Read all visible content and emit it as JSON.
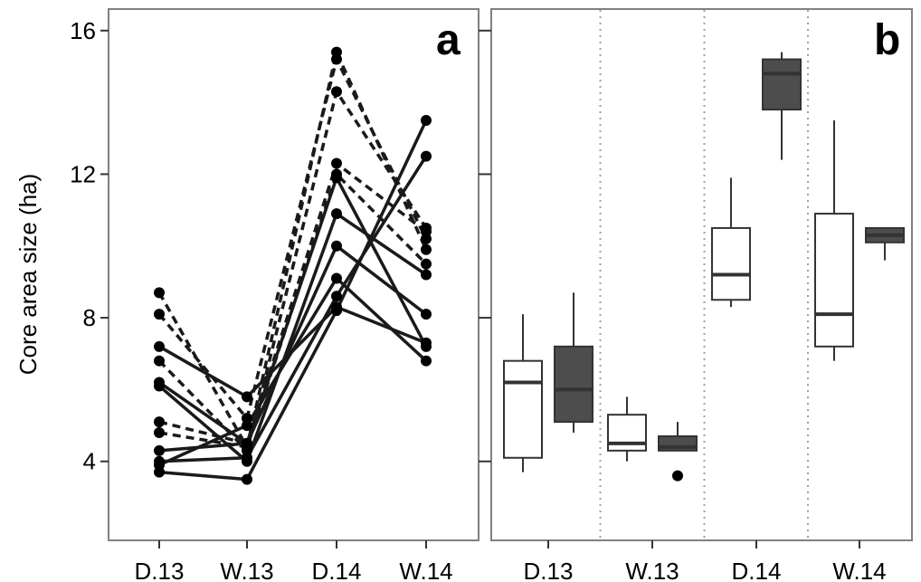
{
  "chart_data": [
    {
      "panel_label": "a",
      "type": "line",
      "ylabel": "Core area size (ha)",
      "xlabel": "",
      "categories": [
        "D.13",
        "W.13",
        "D.14",
        "W.14"
      ],
      "yticks": [
        4,
        8,
        12,
        16
      ],
      "ylim": [
        1.8,
        16.6
      ],
      "grid": false,
      "colors": {
        "line": "#1a1a1a",
        "point": "#000000",
        "frame": "#808080"
      },
      "series": [
        {
          "style": "dashed",
          "values": [
            8.7,
            4.4,
            15.4,
            9.9
          ]
        },
        {
          "style": "dashed",
          "values": [
            8.1,
            5.2,
            15.2,
            10.2
          ]
        },
        {
          "style": "dashed",
          "values": [
            6.8,
            4.3,
            14.3,
            10.5
          ]
        },
        {
          "style": "dashed",
          "values": [
            5.1,
            4.5,
            12.3,
            10.4
          ]
        },
        {
          "style": "dashed",
          "values": [
            4.8,
            4.4,
            12.0,
            9.5
          ]
        },
        {
          "style": "solid",
          "values": [
            7.2,
            5.8,
            8.3,
            7.3
          ]
        },
        {
          "style": "solid",
          "values": [
            6.2,
            4.5,
            11.9,
            7.2
          ]
        },
        {
          "style": "solid",
          "values": [
            6.1,
            4.0,
            10.9,
            9.2
          ]
        },
        {
          "style": "solid",
          "values": [
            4.3,
            4.5,
            10.0,
            8.1
          ]
        },
        {
          "style": "solid",
          "values": [
            3.9,
            5.0,
            9.1,
            6.8
          ]
        },
        {
          "style": "solid",
          "values": [
            4.0,
            4.1,
            8.6,
            12.5
          ]
        },
        {
          "style": "solid",
          "values": [
            3.7,
            3.5,
            8.2,
            13.5
          ]
        }
      ]
    },
    {
      "panel_label": "b",
      "type": "box",
      "categories": [
        "D.13",
        "W.13",
        "D.14",
        "W.14"
      ],
      "yticks": [
        4,
        8,
        12,
        16
      ],
      "ylim": [
        1.8,
        16.6
      ],
      "grid": false,
      "separators": "dotted",
      "colors": {
        "group1_fill": "#ffffff",
        "group2_fill": "#4d4d4d",
        "box_stroke": "#333333",
        "frame": "#808080",
        "separator": "#a0a0a0"
      },
      "boxes": [
        {
          "category": "D.13",
          "group": 1,
          "whisker_low": 3.7,
          "q1": 4.1,
          "median": 6.2,
          "q3": 6.8,
          "whisker_high": 8.1,
          "outliers": []
        },
        {
          "category": "D.13",
          "group": 2,
          "whisker_low": 4.8,
          "q1": 5.1,
          "median": 6.0,
          "q3": 7.2,
          "whisker_high": 8.7,
          "outliers": []
        },
        {
          "category": "W.13",
          "group": 1,
          "whisker_low": 4.0,
          "q1": 4.3,
          "median": 4.5,
          "q3": 5.3,
          "whisker_high": 5.8,
          "outliers": []
        },
        {
          "category": "W.13",
          "group": 2,
          "whisker_low": 4.3,
          "q1": 4.3,
          "median": 4.4,
          "q3": 4.7,
          "whisker_high": 5.1,
          "outliers": [
            3.6
          ]
        },
        {
          "category": "D.14",
          "group": 1,
          "whisker_low": 8.3,
          "q1": 8.5,
          "median": 9.2,
          "q3": 10.5,
          "whisker_high": 11.9,
          "outliers": []
        },
        {
          "category": "D.14",
          "group": 2,
          "whisker_low": 12.4,
          "q1": 13.8,
          "median": 14.8,
          "q3": 15.2,
          "whisker_high": 15.4,
          "outliers": []
        },
        {
          "category": "W.14",
          "group": 1,
          "whisker_low": 6.8,
          "q1": 7.2,
          "median": 8.1,
          "q3": 10.9,
          "whisker_high": 13.5,
          "outliers": []
        },
        {
          "category": "W.14",
          "group": 2,
          "whisker_low": 9.6,
          "q1": 10.1,
          "median": 10.3,
          "q3": 10.5,
          "whisker_high": 10.5,
          "outliers": []
        }
      ]
    }
  ]
}
